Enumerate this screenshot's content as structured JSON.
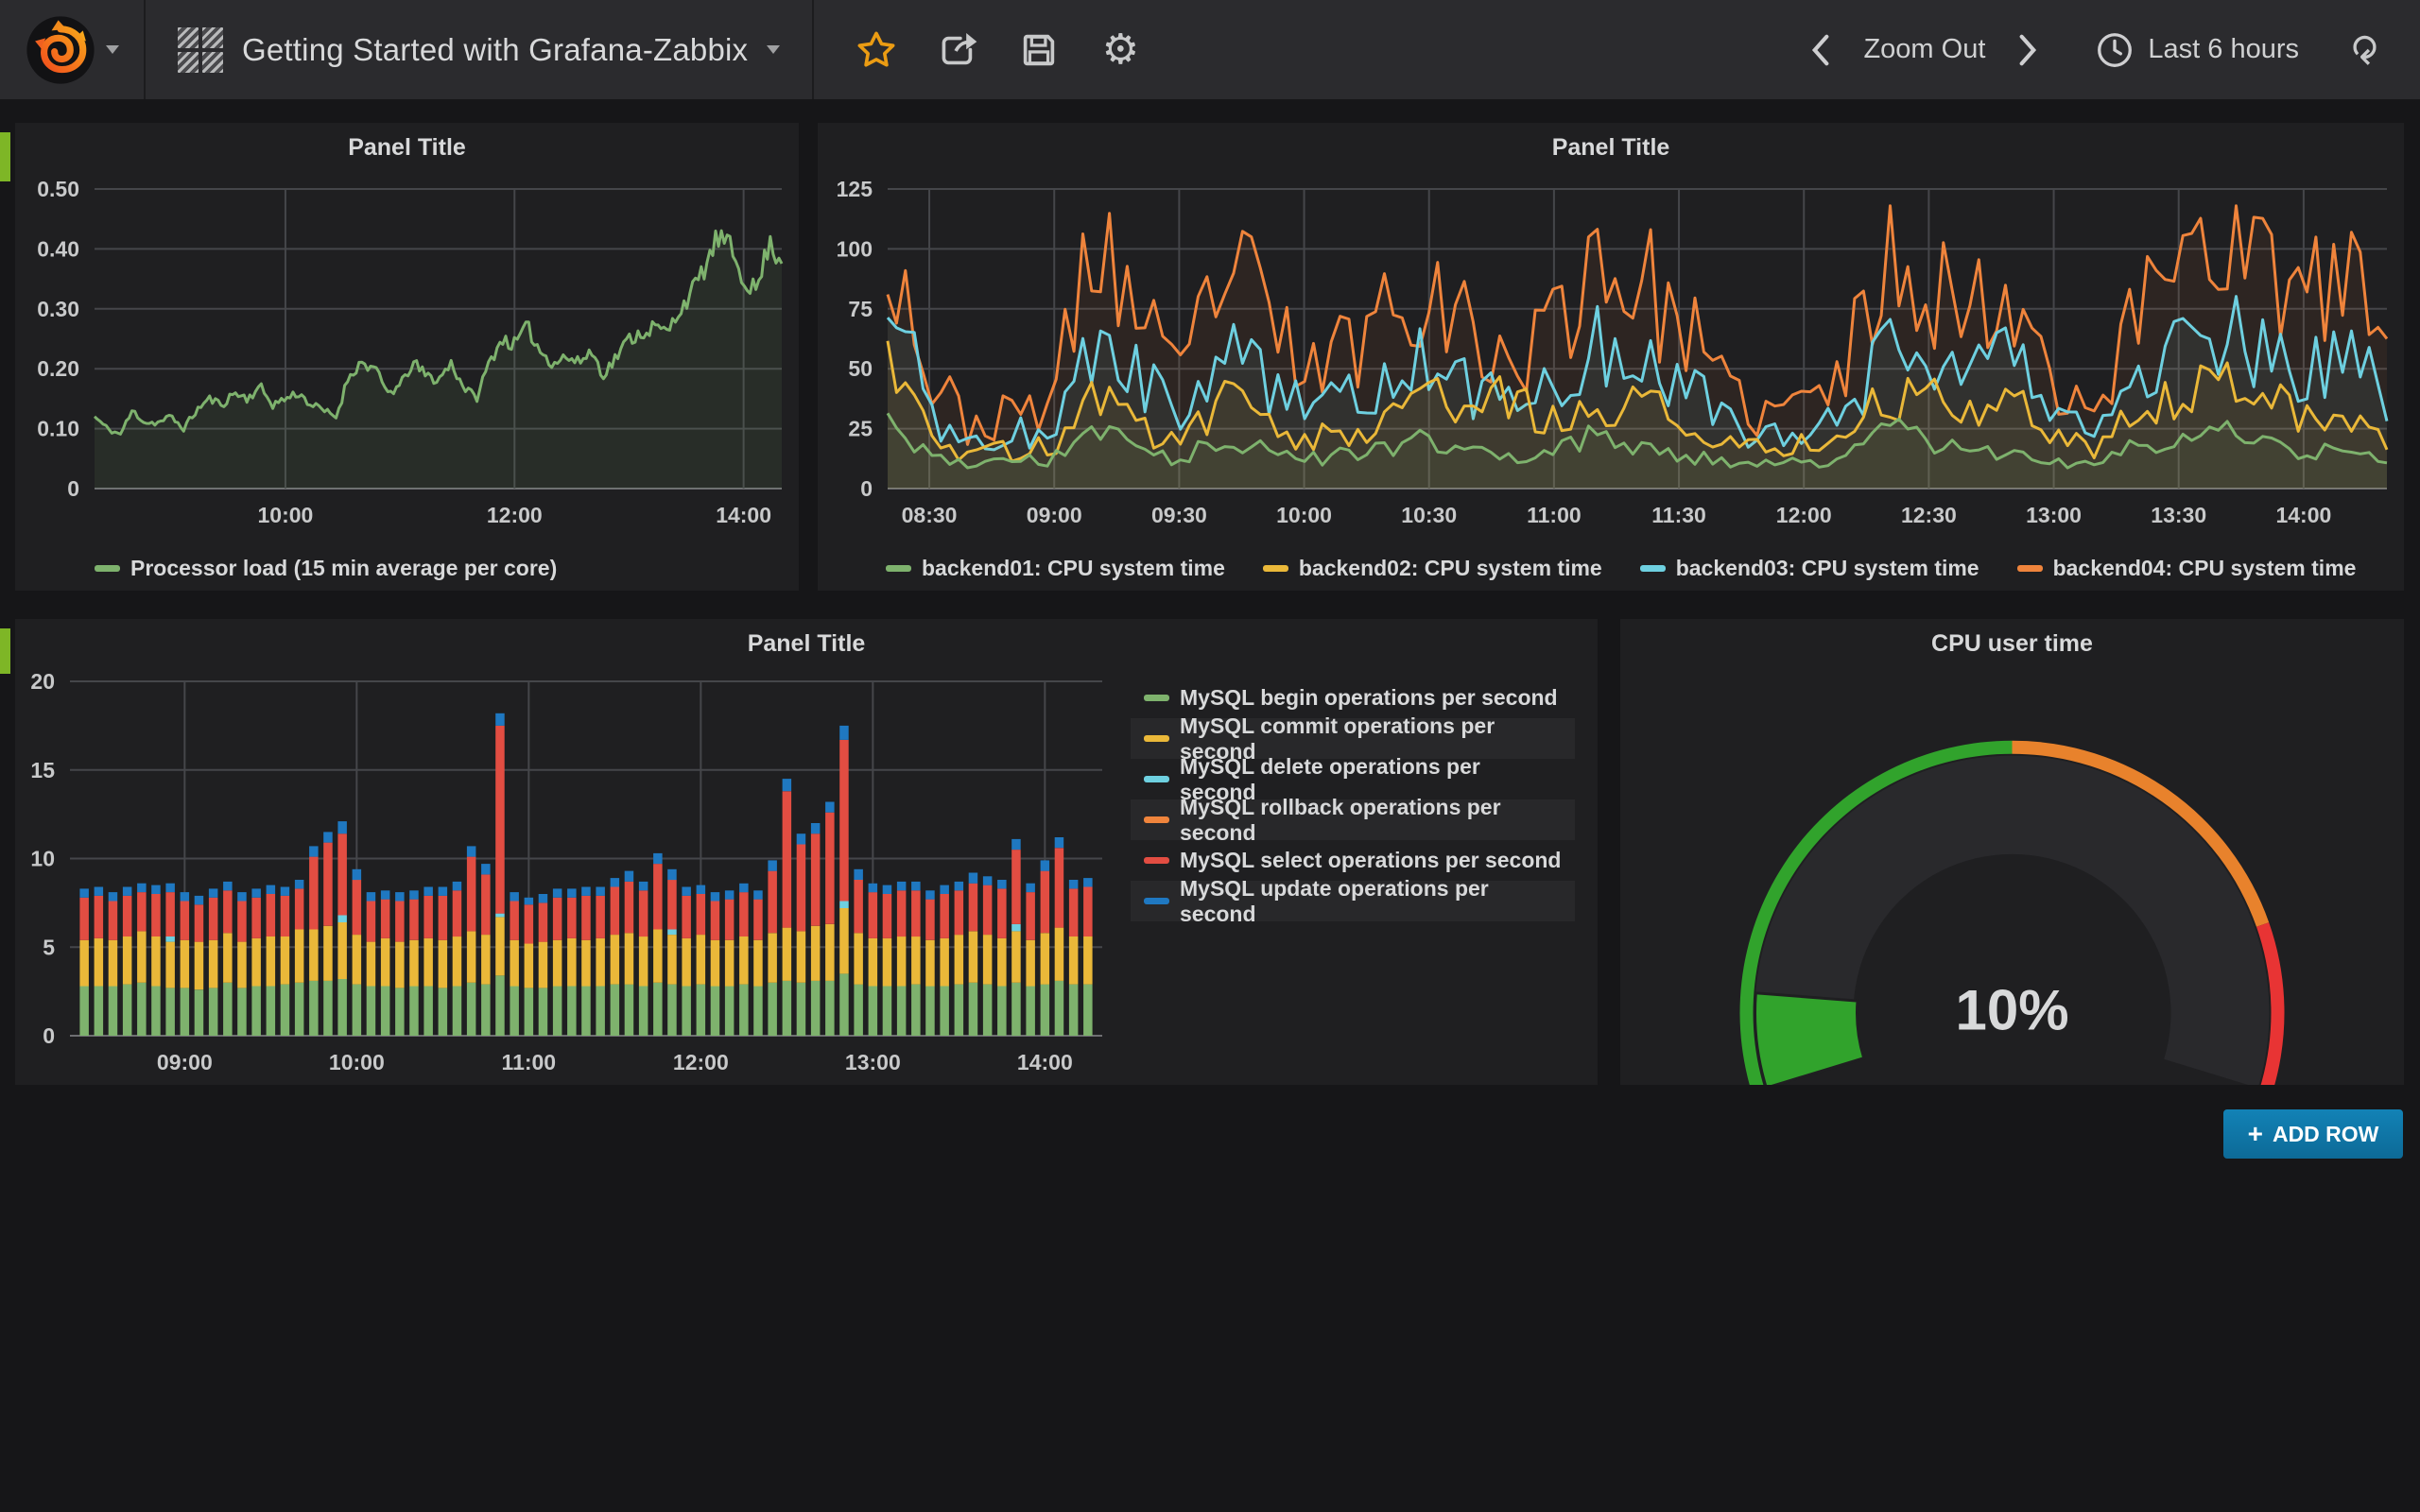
{
  "navbar": {
    "title": "Getting Started with Grafana-Zabbix",
    "zoom_out_label": "Zoom Out",
    "time_range_label": "Last 6 hours"
  },
  "add_row": {
    "plus": "+",
    "label": "ADD ROW"
  },
  "colors": {
    "page_bg": "#161618",
    "panel_bg": "#1f1f21",
    "navbar_bg": "#2b2b2e",
    "grid": "#45464a",
    "axis_text": "#c8c9ca",
    "row_handle": "#7eb626",
    "star": "#eb9c13",
    "add_row_bg": "#0f76a7"
  },
  "chart_data": [
    {
      "type": "line",
      "title": "Panel Title",
      "window": {
        "start": "08:20",
        "end": "14:20"
      },
      "xticks": [
        "10:00",
        "12:00",
        "14:00"
      ],
      "yticks": [
        {
          "v": 0,
          "label": "0"
        },
        {
          "v": 0.1,
          "label": "0.10"
        },
        {
          "v": 0.2,
          "label": "0.20"
        },
        {
          "v": 0.3,
          "label": "0.30"
        },
        {
          "v": 0.4,
          "label": "0.40"
        },
        {
          "v": 0.5,
          "label": "0.50"
        }
      ],
      "ylim": [
        0,
        0.5
      ],
      "legend_position": "bottom",
      "series": [
        {
          "name": "Processor load (15 min average per core)",
          "color": "#7eb26d",
          "fill_opacity": 0.1,
          "jitter": 0.05,
          "clamp": [
            0.07,
            0.46
          ],
          "control": [
            0.12,
            0.1,
            0.09,
            0.13,
            0.11,
            0.11,
            0.12,
            0.1,
            0.13,
            0.15,
            0.14,
            0.16,
            0.15,
            0.17,
            0.14,
            0.15,
            0.16,
            0.14,
            0.13,
            0.12,
            0.19,
            0.21,
            0.2,
            0.16,
            0.17,
            0.21,
            0.19,
            0.18,
            0.21,
            0.17,
            0.15,
            0.21,
            0.25,
            0.24,
            0.27,
            0.23,
            0.21,
            0.22,
            0.21,
            0.23,
            0.19,
            0.22,
            0.25,
            0.26,
            0.27,
            0.26,
            0.3,
            0.33,
            0.37,
            0.42,
            0.4,
            0.35,
            0.33,
            0.41,
            0.38
          ]
        }
      ]
    },
    {
      "type": "line",
      "title": "Panel Title",
      "window": {
        "start": "08:20",
        "end": "14:20"
      },
      "xticks": [
        "08:30",
        "09:00",
        "09:30",
        "10:00",
        "10:30",
        "11:00",
        "11:30",
        "12:00",
        "12:30",
        "13:00",
        "13:30",
        "14:00"
      ],
      "yticks": [
        {
          "v": 0,
          "label": "0"
        },
        {
          "v": 25,
          "label": "25"
        },
        {
          "v": 50,
          "label": "50"
        },
        {
          "v": 75,
          "label": "75"
        },
        {
          "v": 100,
          "label": "100"
        },
        {
          "v": 125,
          "label": "125"
        }
      ],
      "ylim": [
        0,
        125
      ],
      "legend_position": "bottom",
      "series": [
        {
          "name": "backend01: CPU system time",
          "color": "#7eb26d",
          "fill_opacity": 0.07,
          "jitter": 0.25,
          "clamp": [
            7,
            35
          ],
          "control": [
            26,
            13,
            10,
            11,
            12,
            28,
            15,
            12,
            22,
            17,
            12,
            14,
            18,
            20,
            15,
            12,
            16,
            22,
            18,
            14,
            12,
            10,
            11,
            13,
            25,
            20,
            16,
            14,
            12,
            10,
            18,
            22,
            26,
            20,
            16,
            14,
            13
          ]
        },
        {
          "name": "backend02: CPU system time",
          "color": "#eab839",
          "fill_opacity": 0.07,
          "jitter": 0.3,
          "clamp": [
            9,
            75
          ],
          "control": [
            58,
            22,
            15,
            16,
            19,
            42,
            27,
            19,
            37,
            30,
            21,
            23,
            31,
            36,
            36,
            36,
            29,
            29,
            36,
            31,
            23,
            17,
            19,
            21,
            42,
            36,
            31,
            39,
            23,
            17,
            31,
            42,
            46,
            43,
            31,
            25,
            21
          ]
        },
        {
          "name": "backend03: CPU system time",
          "color": "#6ed0e0",
          "fill_opacity": 0.07,
          "jitter": 0.32,
          "clamp": [
            12,
            95
          ],
          "control": [
            88,
            32,
            20,
            22,
            26,
            62,
            48,
            26,
            58,
            48,
            32,
            36,
            46,
            52,
            42,
            36,
            42,
            58,
            52,
            46,
            30,
            22,
            26,
            32,
            58,
            52,
            46,
            52,
            32,
            24,
            46,
            62,
            68,
            58,
            46,
            62,
            36
          ]
        },
        {
          "name": "backend04: CPU system time",
          "color": "#ef843c",
          "fill_opacity": 0.07,
          "jitter": 0.34,
          "clamp": [
            12,
            118
          ],
          "control": [
            112,
            45,
            26,
            30,
            38,
            108,
            72,
            42,
            95,
            75,
            48,
            58,
            78,
            92,
            62,
            52,
            68,
            100,
            85,
            72,
            42,
            30,
            36,
            48,
            103,
            90,
            72,
            85,
            48,
            32,
            72,
            108,
            112,
            95,
            72,
            95,
            58
          ]
        }
      ]
    },
    {
      "type": "stacked-bar",
      "title": "Panel Title",
      "window": {
        "start": "08:20",
        "end": "14:20"
      },
      "bars_start": "08:25",
      "bars_step_min": 5,
      "xticks": [
        "09:00",
        "10:00",
        "11:00",
        "12:00",
        "13:00",
        "14:00"
      ],
      "yticks": [
        {
          "v": 0,
          "label": "0"
        },
        {
          "v": 5,
          "label": "5"
        },
        {
          "v": 10,
          "label": "10"
        },
        {
          "v": 15,
          "label": "15"
        },
        {
          "v": 20,
          "label": "20"
        }
      ],
      "ylim": [
        0,
        20
      ],
      "legend_position": "right",
      "series_meta": [
        {
          "name": "MySQL begin operations per second",
          "color": "#7eb26d"
        },
        {
          "name": "MySQL commit operations per second",
          "color": "#eab839"
        },
        {
          "name": "MySQL delete operations per second",
          "color": "#6ed0e0"
        },
        {
          "name": "MySQL rollback operations per second",
          "color": "#ef843c"
        },
        {
          "name": "MySQL select operations per second",
          "color": "#e24d42"
        },
        {
          "name": "MySQL update operations per second",
          "color": "#1f78c1"
        }
      ],
      "stacks": [
        [
          2.8,
          2.6,
          0,
          0,
          2.4,
          0.5
        ],
        [
          2.8,
          2.7,
          0,
          0,
          2.4,
          0.5
        ],
        [
          2.8,
          2.6,
          0,
          0,
          2.2,
          0.5
        ],
        [
          2.9,
          2.7,
          0,
          0,
          2.3,
          0.5
        ],
        [
          3.0,
          2.9,
          0,
          0,
          2.2,
          0.5
        ],
        [
          2.8,
          2.8,
          0,
          0,
          2.4,
          0.5
        ],
        [
          2.7,
          2.6,
          0.3,
          0,
          2.5,
          0.5
        ],
        [
          2.7,
          2.7,
          0,
          0,
          2.2,
          0.5
        ],
        [
          2.6,
          2.7,
          0,
          0,
          2.1,
          0.5
        ],
        [
          2.7,
          2.7,
          0,
          0,
          2.4,
          0.5
        ],
        [
          3.0,
          2.8,
          0,
          0,
          2.4,
          0.5
        ],
        [
          2.7,
          2.6,
          0,
          0,
          2.3,
          0.5
        ],
        [
          2.8,
          2.7,
          0,
          0,
          2.3,
          0.5
        ],
        [
          2.8,
          2.8,
          0,
          0,
          2.4,
          0.5
        ],
        [
          2.9,
          2.7,
          0,
          0,
          2.3,
          0.5
        ],
        [
          3.0,
          3.0,
          0,
          0,
          2.3,
          0.5
        ],
        [
          3.1,
          2.9,
          0,
          0,
          4.1,
          0.6
        ],
        [
          3.1,
          3.1,
          0,
          0,
          4.7,
          0.6
        ],
        [
          3.2,
          3.2,
          0.4,
          0,
          4.6,
          0.7
        ],
        [
          2.9,
          2.8,
          0,
          0,
          3.1,
          0.6
        ],
        [
          2.8,
          2.5,
          0,
          0,
          2.3,
          0.5
        ],
        [
          2.8,
          2.7,
          0,
          0,
          2.2,
          0.5
        ],
        [
          2.7,
          2.6,
          0,
          0,
          2.3,
          0.5
        ],
        [
          2.8,
          2.6,
          0,
          0,
          2.3,
          0.5
        ],
        [
          2.8,
          2.7,
          0,
          0,
          2.4,
          0.5
        ],
        [
          2.7,
          2.7,
          0,
          0,
          2.5,
          0.5
        ],
        [
          2.8,
          2.8,
          0,
          0,
          2.6,
          0.5
        ],
        [
          3.0,
          2.9,
          0,
          0,
          4.2,
          0.6
        ],
        [
          2.9,
          2.8,
          0,
          0,
          3.4,
          0.6
        ],
        [
          3.4,
          3.3,
          0.2,
          0,
          10.6,
          0.7
        ],
        [
          2.8,
          2.6,
          0,
          0,
          2.2,
          0.5
        ],
        [
          2.7,
          2.5,
          0,
          0,
          2.2,
          0.4
        ],
        [
          2.7,
          2.6,
          0,
          0,
          2.2,
          0.5
        ],
        [
          2.8,
          2.6,
          0,
          0,
          2.4,
          0.5
        ],
        [
          2.8,
          2.7,
          0,
          0,
          2.3,
          0.5
        ],
        [
          2.8,
          2.6,
          0,
          0,
          2.5,
          0.5
        ],
        [
          2.8,
          2.7,
          0,
          0,
          2.4,
          0.5
        ],
        [
          2.9,
          2.8,
          0,
          0,
          2.7,
          0.5
        ],
        [
          2.9,
          2.9,
          0,
          0,
          2.9,
          0.6
        ],
        [
          2.8,
          2.8,
          0,
          0,
          2.6,
          0.5
        ],
        [
          3.0,
          3.0,
          0,
          0,
          3.7,
          0.6
        ],
        [
          2.9,
          2.8,
          0.3,
          0,
          2.8,
          0.6
        ],
        [
          2.8,
          2.7,
          0,
          0,
          2.4,
          0.5
        ],
        [
          2.9,
          2.8,
          0,
          0,
          2.3,
          0.5
        ],
        [
          2.8,
          2.6,
          0,
          0,
          2.2,
          0.5
        ],
        [
          2.8,
          2.6,
          0,
          0,
          2.3,
          0.5
        ],
        [
          2.9,
          2.7,
          0,
          0,
          2.5,
          0.5
        ],
        [
          2.8,
          2.6,
          0,
          0,
          2.3,
          0.5
        ],
        [
          3.0,
          2.8,
          0,
          0,
          3.5,
          0.6
        ],
        [
          3.1,
          3.0,
          0,
          0,
          7.7,
          0.7
        ],
        [
          3.0,
          2.9,
          0,
          0,
          4.9,
          0.6
        ],
        [
          3.1,
          3.1,
          0,
          0,
          5.2,
          0.6
        ],
        [
          3.1,
          3.2,
          0,
          0,
          6.3,
          0.6
        ],
        [
          3.5,
          3.7,
          0.4,
          0,
          9.1,
          0.8
        ],
        [
          2.9,
          2.9,
          0,
          0,
          3.0,
          0.6
        ],
        [
          2.8,
          2.7,
          0,
          0,
          2.6,
          0.5
        ],
        [
          2.8,
          2.7,
          0,
          0,
          2.5,
          0.5
        ],
        [
          2.8,
          2.8,
          0,
          0,
          2.6,
          0.5
        ],
        [
          2.9,
          2.7,
          0,
          0,
          2.6,
          0.5
        ],
        [
          2.8,
          2.6,
          0,
          0,
          2.3,
          0.5
        ],
        [
          2.8,
          2.7,
          0,
          0,
          2.5,
          0.5
        ],
        [
          2.9,
          2.8,
          0,
          0,
          2.5,
          0.5
        ],
        [
          3.0,
          2.9,
          0,
          0,
          2.7,
          0.6
        ],
        [
          2.9,
          2.8,
          0,
          0,
          2.8,
          0.5
        ],
        [
          2.8,
          2.7,
          0,
          0,
          2.8,
          0.5
        ],
        [
          3.0,
          2.9,
          0.4,
          0,
          4.2,
          0.6
        ],
        [
          2.8,
          2.6,
          0,
          0,
          2.7,
          0.5
        ],
        [
          2.9,
          2.9,
          0,
          0,
          3.5,
          0.6
        ],
        [
          3.1,
          3.0,
          0,
          0,
          4.5,
          0.6
        ],
        [
          2.9,
          2.7,
          0,
          0,
          2.7,
          0.5
        ],
        [
          2.9,
          2.7,
          0,
          0,
          2.8,
          0.5
        ]
      ]
    },
    {
      "type": "gauge",
      "title": "CPU user time",
      "value": 10,
      "value_text": "10%",
      "span_deg": 214,
      "thresholds": [
        {
          "to_pct": 50,
          "color": "#31a32c"
        },
        {
          "to_pct": 83,
          "color": "#e8822c"
        },
        {
          "to_pct": 100,
          "color": "#e83434"
        }
      ],
      "track_color": "#29292c",
      "value_color": "#31a32c"
    }
  ]
}
